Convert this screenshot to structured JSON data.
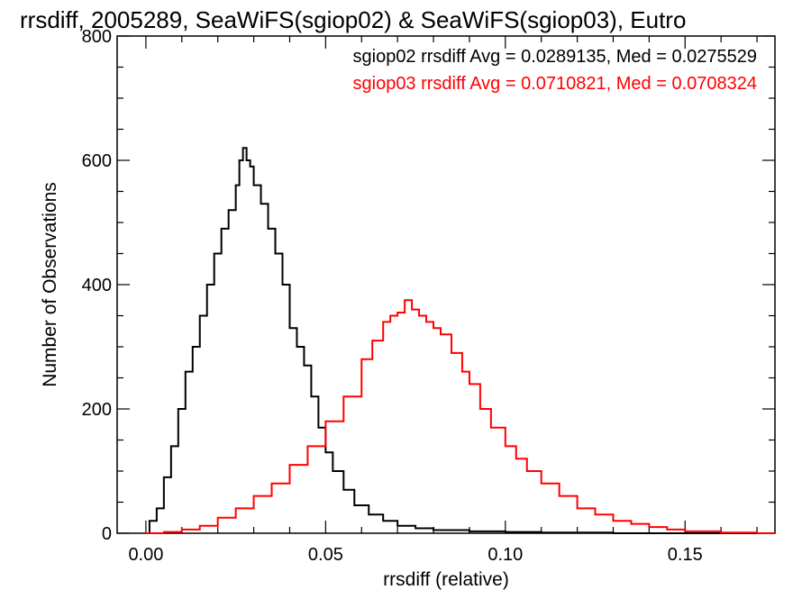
{
  "chart_data": {
    "type": "histogram-line",
    "title": "rrsdiff, 2005289, SeaWiFS(sgiop02) & SeaWiFS(sgiop03), Eutro",
    "xlabel": "rrsdiff (relative)",
    "ylabel": "Number of Observations",
    "xlim": [
      -0.008,
      0.175
    ],
    "ylim": [
      0,
      800
    ],
    "x_ticks": [
      0.0,
      0.05,
      0.1,
      0.15
    ],
    "x_tick_labels": [
      "0.00",
      "0.05",
      "0.10",
      "0.15"
    ],
    "y_ticks": [
      0,
      200,
      400,
      600,
      800
    ],
    "y_tick_labels": [
      "0",
      "200",
      "400",
      "600",
      "800"
    ],
    "grid": false,
    "legend_placement": "top-right",
    "annotations": [
      {
        "text": "sgiop02 rrsdiff Avg = 0.0289135, Med = 0.0275529",
        "color": "#000000"
      },
      {
        "text": "sgiop03 rrsdiff Avg = 0.0710821, Med = 0.0708324",
        "color": "#ff0000"
      }
    ],
    "series": [
      {
        "name": "sgiop02",
        "color": "#000000",
        "points": [
          [
            0.0,
            0
          ],
          [
            0.001,
            20
          ],
          [
            0.003,
            40
          ],
          [
            0.005,
            90
          ],
          [
            0.007,
            140
          ],
          [
            0.009,
            200
          ],
          [
            0.011,
            260
          ],
          [
            0.013,
            300
          ],
          [
            0.015,
            350
          ],
          [
            0.017,
            400
          ],
          [
            0.019,
            450
          ],
          [
            0.021,
            490
          ],
          [
            0.023,
            520
          ],
          [
            0.025,
            560
          ],
          [
            0.026,
            600
          ],
          [
            0.027,
            620
          ],
          [
            0.028,
            600
          ],
          [
            0.029,
            590
          ],
          [
            0.03,
            560
          ],
          [
            0.032,
            530
          ],
          [
            0.034,
            490
          ],
          [
            0.036,
            450
          ],
          [
            0.038,
            400
          ],
          [
            0.04,
            330
          ],
          [
            0.042,
            300
          ],
          [
            0.044,
            270
          ],
          [
            0.046,
            220
          ],
          [
            0.048,
            170
          ],
          [
            0.05,
            130
          ],
          [
            0.052,
            100
          ],
          [
            0.055,
            70
          ],
          [
            0.058,
            45
          ],
          [
            0.062,
            30
          ],
          [
            0.066,
            20
          ],
          [
            0.07,
            12
          ],
          [
            0.075,
            8
          ],
          [
            0.08,
            5
          ],
          [
            0.09,
            3
          ],
          [
            0.1,
            2
          ],
          [
            0.11,
            1
          ],
          [
            0.13,
            0
          ],
          [
            0.175,
            0
          ]
        ]
      },
      {
        "name": "sgiop03",
        "color": "#ff0000",
        "points": [
          [
            0.0,
            0
          ],
          [
            0.005,
            2
          ],
          [
            0.01,
            6
          ],
          [
            0.015,
            12
          ],
          [
            0.02,
            25
          ],
          [
            0.025,
            40
          ],
          [
            0.03,
            60
          ],
          [
            0.035,
            80
          ],
          [
            0.04,
            110
          ],
          [
            0.045,
            140
          ],
          [
            0.05,
            180
          ],
          [
            0.055,
            220
          ],
          [
            0.06,
            280
          ],
          [
            0.063,
            310
          ],
          [
            0.066,
            340
          ],
          [
            0.068,
            350
          ],
          [
            0.07,
            355
          ],
          [
            0.072,
            375
          ],
          [
            0.074,
            360
          ],
          [
            0.076,
            350
          ],
          [
            0.078,
            340
          ],
          [
            0.08,
            330
          ],
          [
            0.082,
            320
          ],
          [
            0.085,
            290
          ],
          [
            0.088,
            260
          ],
          [
            0.09,
            240
          ],
          [
            0.093,
            200
          ],
          [
            0.096,
            170
          ],
          [
            0.1,
            140
          ],
          [
            0.103,
            120
          ],
          [
            0.106,
            100
          ],
          [
            0.11,
            80
          ],
          [
            0.115,
            60
          ],
          [
            0.12,
            40
          ],
          [
            0.125,
            30
          ],
          [
            0.13,
            20
          ],
          [
            0.135,
            15
          ],
          [
            0.14,
            10
          ],
          [
            0.145,
            6
          ],
          [
            0.15,
            3
          ],
          [
            0.16,
            1
          ],
          [
            0.17,
            0
          ],
          [
            0.175,
            0
          ]
        ]
      }
    ]
  }
}
